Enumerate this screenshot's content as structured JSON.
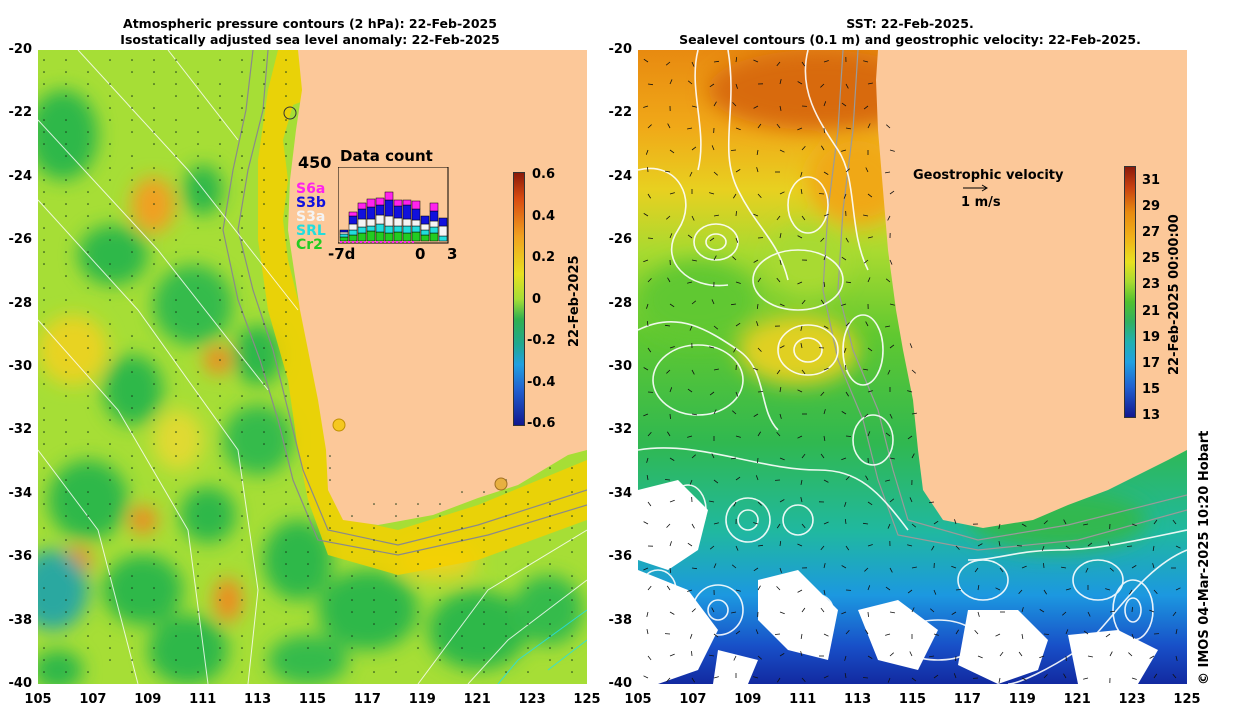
{
  "left_panel": {
    "title_line1": "Atmospheric pressure contours (2 hPa): 22-Feb-2025",
    "title_line2": "Isostatically adjusted sea level anomaly: 22-Feb-2025",
    "colorbar_ticks": [
      "0.6",
      "0.4",
      "0.2",
      "0",
      "-0.2",
      "-0.4",
      "-0.6"
    ],
    "colorbar_label": "22-Feb-2025",
    "inset": {
      "title": "Data count",
      "max_count": "450",
      "x_start": "-7d",
      "x_zero": "0",
      "x_end": "3",
      "satellites": [
        {
          "name": "S6a",
          "color": "#ff22ee"
        },
        {
          "name": "S3b",
          "color": "#1111dd"
        },
        {
          "name": "S3a",
          "color": "#f4f4f4"
        },
        {
          "name": "SRL",
          "color": "#22dddd"
        },
        {
          "name": "Cr2",
          "color": "#22cc22"
        }
      ]
    }
  },
  "right_panel": {
    "title_line1": "SST: 22-Feb-2025.",
    "title_line2": "Sealevel contours (0.1 m) and geostrophic velocity: 22-Feb-2025.",
    "velocity_label": "Geostrophic velocity",
    "velocity_scale": "1 m/s",
    "colorbar_ticks": [
      "31",
      "29",
      "27",
      "25",
      "23",
      "21",
      "19",
      "17",
      "15",
      "13"
    ],
    "colorbar_label": "22-Feb-2025 00:00:00"
  },
  "y_ticks": [
    "-20",
    "-22",
    "-24",
    "-26",
    "-28",
    "-30",
    "-32",
    "-34",
    "-36",
    "-38",
    "-40"
  ],
  "x_ticks": [
    "105",
    "107",
    "109",
    "111",
    "113",
    "115",
    "117",
    "119",
    "121",
    "123",
    "125"
  ],
  "credit": "© IMOS 04-Mar-2025 10:20 Hobart",
  "colors": {
    "land": "#fcc899",
    "ocean_base": "#9ee22e",
    "coast_band": "#f5d200"
  }
}
